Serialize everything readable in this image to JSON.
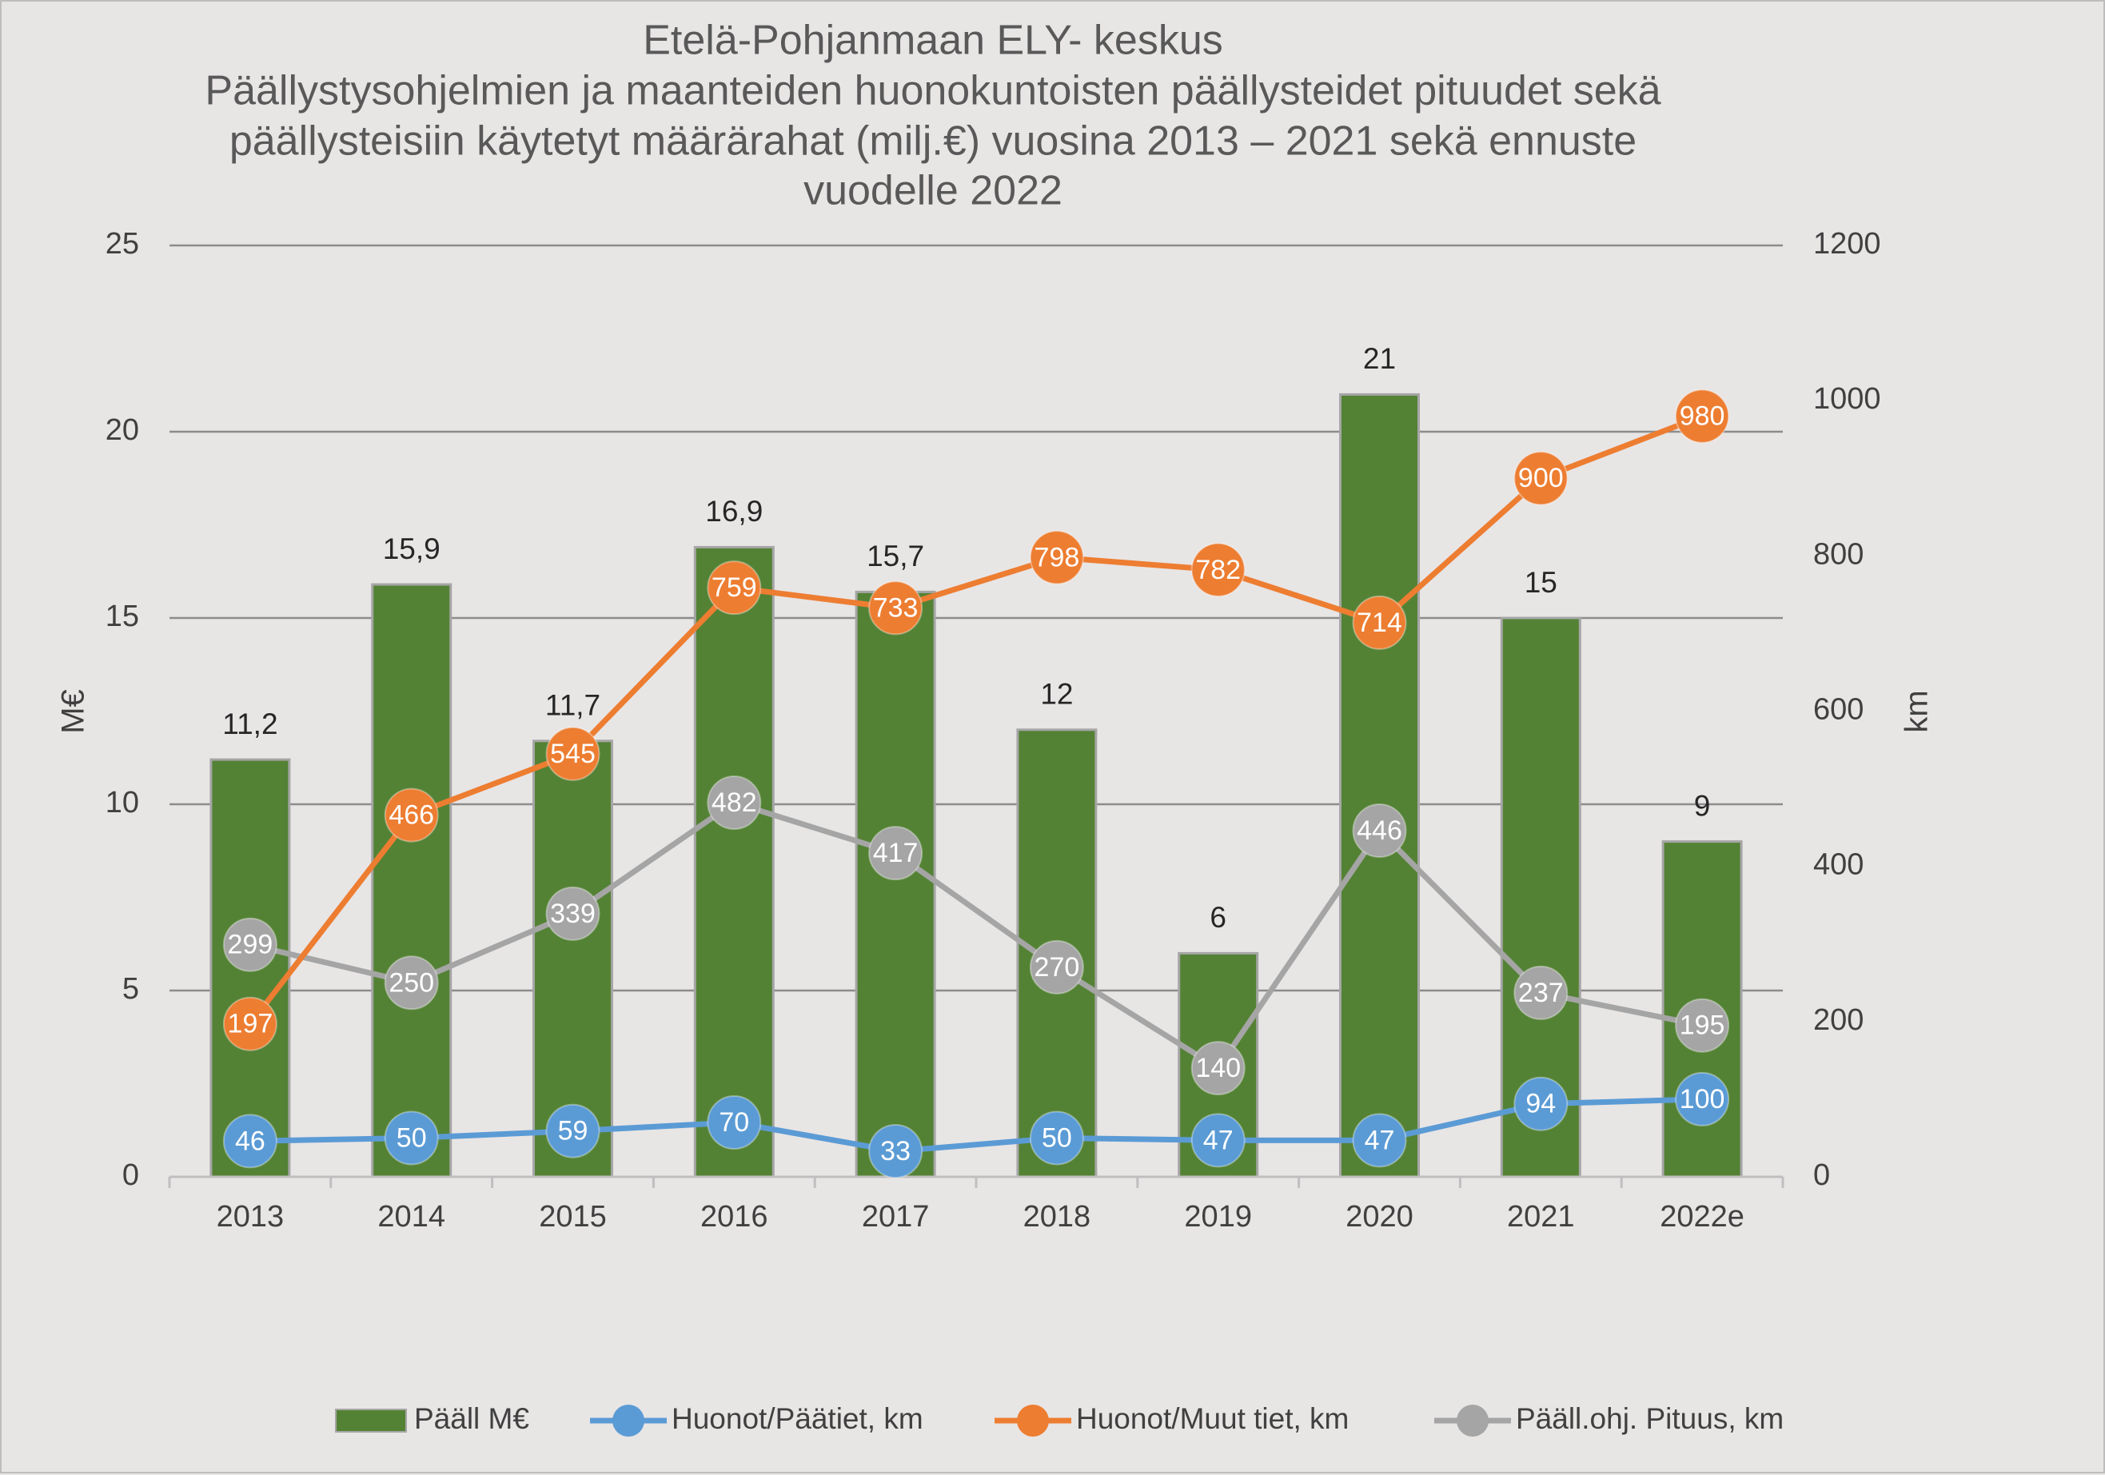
{
  "chart_data": {
    "type": "bar",
    "title_lines": [
      "Etelä-Pohjanmaan ELY- keskus",
      "Päällystysohjelmien ja maanteiden huonokuntoisten päällysteidet pituudet sekä",
      "päällysteisiin käytetyt määrärahat (milj.€) vuosina 2013 – 2021 sekä ennuste",
      "vuodelle 2022"
    ],
    "categories": [
      "2013",
      "2014",
      "2015",
      "2016",
      "2017",
      "2018",
      "2019",
      "2020",
      "2021",
      "2022e"
    ],
    "y_left": {
      "label": "M€",
      "ylim": [
        0,
        25
      ],
      "ticks": [
        0,
        5,
        10,
        15,
        20,
        25
      ]
    },
    "y_right": {
      "label": "km",
      "ylim": [
        0,
        1200
      ],
      "ticks": [
        0,
        200,
        400,
        600,
        800,
        1000,
        1200
      ]
    },
    "grid": true,
    "legend_position": "bottom",
    "series": [
      {
        "name": "Pääll M€",
        "type": "bar",
        "axis": "left",
        "color": "#548235",
        "values": [
          11.2,
          15.9,
          11.7,
          16.9,
          15.7,
          12,
          6,
          21,
          15,
          9
        ],
        "labels": [
          "11,2",
          "15,9",
          "11,7",
          "16,9",
          "15,7",
          "12",
          "6",
          "21",
          "15",
          "9"
        ]
      },
      {
        "name": "Huonot/Päätiet, km",
        "type": "line",
        "axis": "right",
        "color": "#5b9bd5",
        "values": [
          46,
          50,
          59,
          70,
          33,
          50,
          47,
          47,
          94,
          100
        ],
        "labels": [
          "46",
          "50",
          "59",
          "70",
          "33",
          "50",
          "47",
          "47",
          "94",
          "100"
        ]
      },
      {
        "name": "Huonot/Muut tiet, km",
        "type": "line",
        "axis": "right",
        "color": "#ed7d31",
        "values": [
          197,
          466,
          545,
          759,
          733,
          798,
          782,
          714,
          900,
          980
        ],
        "labels": [
          "197",
          "466",
          "545",
          "759",
          "733",
          "798",
          "782",
          "714",
          "900",
          "980"
        ]
      },
      {
        "name": "Pääll.ohj. Pituus, km",
        "type": "line",
        "axis": "right",
        "color": "#a5a5a5",
        "values": [
          299,
          250,
          339,
          482,
          417,
          270,
          140,
          446,
          237,
          195
        ],
        "labels": [
          "299",
          "250",
          "339",
          "482",
          "417",
          "270",
          "140",
          "446",
          "237",
          "195"
        ]
      }
    ]
  }
}
